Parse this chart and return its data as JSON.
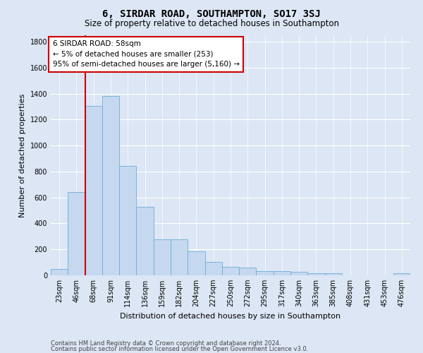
{
  "title": "6, SIRDAR ROAD, SOUTHAMPTON, SO17 3SJ",
  "subtitle": "Size of property relative to detached houses in Southampton",
  "xlabel": "Distribution of detached houses by size in Southampton",
  "ylabel": "Number of detached properties",
  "categories": [
    "23sqm",
    "46sqm",
    "68sqm",
    "91sqm",
    "114sqm",
    "136sqm",
    "159sqm",
    "182sqm",
    "204sqm",
    "227sqm",
    "250sqm",
    "272sqm",
    "295sqm",
    "317sqm",
    "340sqm",
    "363sqm",
    "385sqm",
    "408sqm",
    "431sqm",
    "453sqm",
    "476sqm"
  ],
  "bar_heights": [
    50,
    640,
    1305,
    1380,
    845,
    530,
    275,
    275,
    185,
    105,
    65,
    60,
    35,
    30,
    25,
    15,
    15,
    0,
    0,
    0,
    15
  ],
  "bar_color": "#c5d8f0",
  "bar_edge_color": "#6baed6",
  "background_color": "#dce6f5",
  "grid_color": "#ffffff",
  "vline_color": "#cc0000",
  "vline_x_index": 1.5,
  "annotation_text": "6 SIRDAR ROAD: 58sqm\n← 5% of detached houses are smaller (253)\n95% of semi-detached houses are larger (5,160) →",
  "annotation_box_facecolor": "#ffffff",
  "annotation_box_edgecolor": "#cc0000",
  "ylim": [
    0,
    1850
  ],
  "yticks": [
    0,
    200,
    400,
    600,
    800,
    1000,
    1200,
    1400,
    1600,
    1800
  ],
  "footer1": "Contains HM Land Registry data © Crown copyright and database right 2024.",
  "footer2": "Contains public sector information licensed under the Open Government Licence v3.0.",
  "title_fontsize": 10,
  "subtitle_fontsize": 8.5,
  "xlabel_fontsize": 8,
  "ylabel_fontsize": 8,
  "tick_fontsize": 7,
  "annotation_fontsize": 7.5,
  "footer_fontsize": 6
}
